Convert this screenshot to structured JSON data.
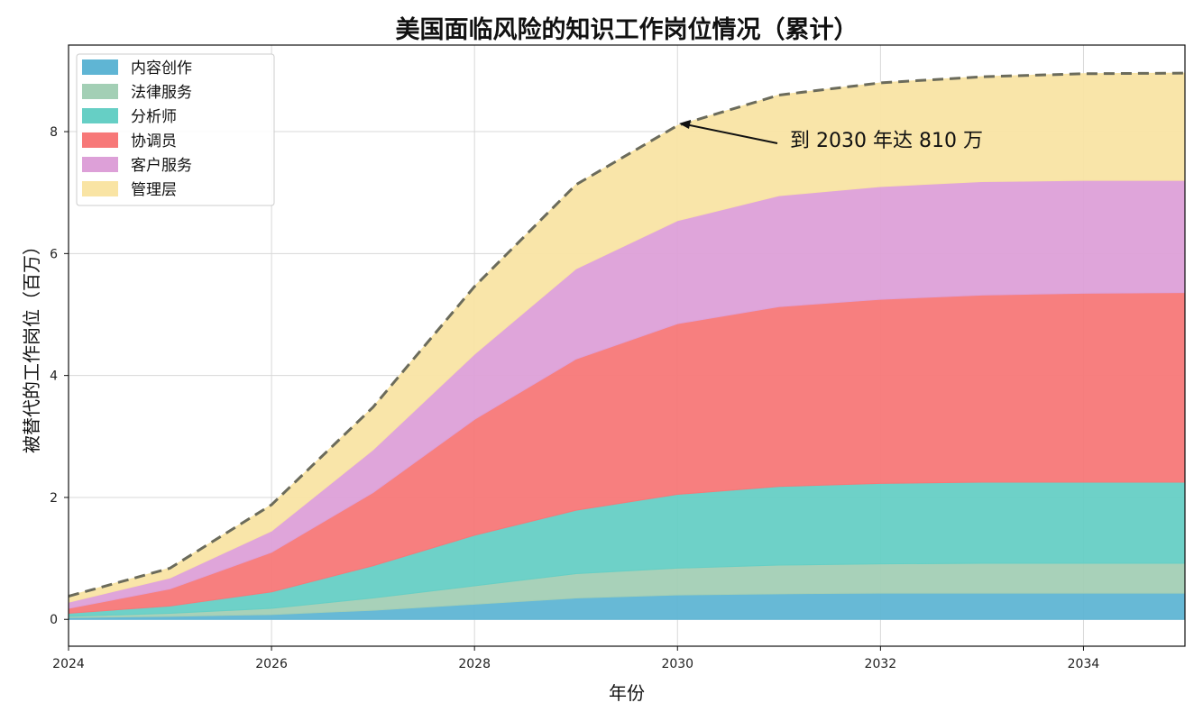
{
  "chart_data": {
    "type": "area",
    "stacked": true,
    "title": "美国面临风险的知识工作岗位情况（累计）",
    "xlabel": "年份",
    "ylabel": "被替代的工作岗位（百万）",
    "xlim": [
      2024,
      2035
    ],
    "ylim": [
      -0.44,
      9.42
    ],
    "xticks": [
      "2024",
      "2026",
      "2028",
      "2030",
      "2032",
      "2034"
    ],
    "yticks": [
      "0",
      "2",
      "4",
      "6",
      "8"
    ],
    "grid": true,
    "legend_position": "top-left",
    "x": [
      2024,
      2025,
      2026,
      2027,
      2028,
      2029,
      2030,
      2031,
      2032,
      2033,
      2034,
      2035
    ],
    "series": [
      {
        "name": "内容创作",
        "color": "#5fb5d4",
        "values": [
          0.03,
          0.05,
          0.08,
          0.15,
          0.25,
          0.35,
          0.4,
          0.42,
          0.43,
          0.43,
          0.43,
          0.43
        ]
      },
      {
        "name": "法律服务",
        "color": "#a3cfb5",
        "values": [
          0.02,
          0.05,
          0.1,
          0.2,
          0.3,
          0.4,
          0.44,
          0.47,
          0.48,
          0.49,
          0.49,
          0.49
        ]
      },
      {
        "name": "分析师",
        "color": "#66cfc5",
        "values": [
          0.05,
          0.12,
          0.27,
          0.53,
          0.83,
          1.04,
          1.21,
          1.29,
          1.32,
          1.33,
          1.33,
          1.33
        ]
      },
      {
        "name": "协调员",
        "color": "#f77878",
        "values": [
          0.08,
          0.28,
          0.65,
          1.2,
          1.9,
          2.48,
          2.8,
          2.95,
          3.02,
          3.07,
          3.1,
          3.11
        ]
      },
      {
        "name": "客户服务",
        "color": "#dda0d8",
        "values": [
          0.1,
          0.18,
          0.35,
          0.7,
          1.07,
          1.48,
          1.69,
          1.82,
          1.85,
          1.86,
          1.85,
          1.84
        ]
      },
      {
        "name": "管理层",
        "color": "#f9e4a4",
        "values": [
          0.1,
          0.16,
          0.43,
          0.7,
          1.11,
          1.38,
          1.56,
          1.65,
          1.7,
          1.72,
          1.75,
          1.76
        ]
      }
    ],
    "total_line": {
      "style": "dashed",
      "color": "#6b6b5b"
    },
    "annotation": {
      "text": "到 2030 年达 810 万",
      "x": 2030,
      "y": 8.1
    }
  }
}
